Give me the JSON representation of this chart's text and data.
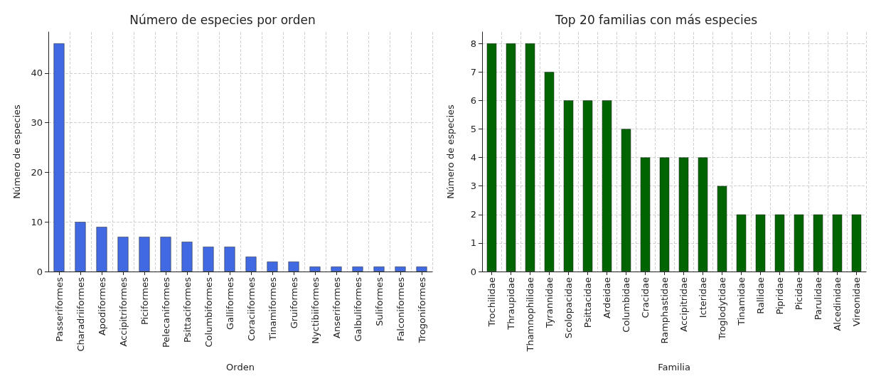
{
  "chart_data": [
    {
      "type": "bar",
      "title": "Número de especies por orden",
      "xlabel": "Orden",
      "ylabel": "Número de especies",
      "categories": [
        "Passeriformes",
        "Charadriiformes",
        "Apodiformes",
        "Accipitriformes",
        "Piciformes",
        "Pelecaniformes",
        "Psittaciformes",
        "Columbiformes",
        "Galliformes",
        "Coraciiformes",
        "Tinamiformes",
        "Gruiformes",
        "Nyctibiiformes",
        "Anseriformes",
        "Galbuliformes",
        "Suliformes",
        "Falconiformes",
        "Trogoniformes"
      ],
      "values": [
        46,
        10,
        9,
        7,
        7,
        7,
        6,
        5,
        5,
        3,
        2,
        2,
        1,
        1,
        1,
        1,
        1,
        1
      ],
      "color": "#4169e1",
      "ylim": [
        0,
        48.3
      ],
      "yticks": [
        0,
        10,
        20,
        30,
        40
      ],
      "grid": true
    },
    {
      "type": "bar",
      "title": "Top 20 familias con más especies",
      "xlabel": "Familia",
      "ylabel": "Número de especies",
      "categories": [
        "Trochilidae",
        "Thraupidae",
        "Thamnophilidae",
        "Tyrannidae",
        "Scolopacidae",
        "Psittacidae",
        "Ardeidae",
        "Columbidae",
        "Cracidae",
        "Ramphastidae",
        "Accipitridae",
        "Icteridae",
        "Troglodytidae",
        "Tinamidae",
        "Rallidae",
        "Pipridae",
        "Picidae",
        "Parulidae",
        "Alcedinidae",
        "Vireonidae"
      ],
      "values": [
        8,
        8,
        8,
        7,
        6,
        6,
        6,
        5,
        4,
        4,
        4,
        4,
        3,
        2,
        2,
        2,
        2,
        2,
        2,
        2
      ],
      "color": "#006400",
      "ylim": [
        0,
        8.4
      ],
      "yticks": [
        0,
        1,
        2,
        3,
        4,
        5,
        6,
        7,
        8
      ],
      "grid": true
    }
  ]
}
